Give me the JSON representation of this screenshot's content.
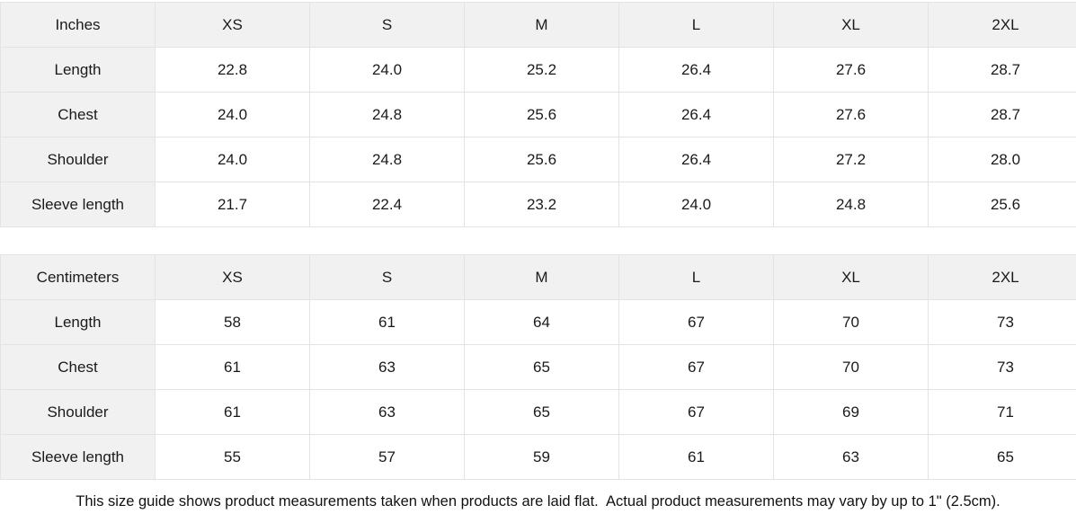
{
  "colors": {
    "header_bg": "#f1f1f1",
    "label_column_bg": "#f1f1f1",
    "border": "#e3e3e3",
    "text": "#1a1a1a",
    "page_bg": "#ffffff"
  },
  "tables": [
    {
      "unit_label": "Inches",
      "size_headers": [
        "XS",
        "S",
        "M",
        "L",
        "XL",
        "2XL"
      ],
      "rows": [
        {
          "label": "Length",
          "values": [
            "22.8",
            "24.0",
            "25.2",
            "26.4",
            "27.6",
            "28.7"
          ]
        },
        {
          "label": "Chest",
          "values": [
            "24.0",
            "24.8",
            "25.6",
            "26.4",
            "27.6",
            "28.7"
          ]
        },
        {
          "label": "Shoulder",
          "values": [
            "24.0",
            "24.8",
            "25.6",
            "26.4",
            "27.2",
            "28.0"
          ]
        },
        {
          "label": "Sleeve length",
          "values": [
            "21.7",
            "22.4",
            "23.2",
            "24.0",
            "24.8",
            "25.6"
          ]
        }
      ]
    },
    {
      "unit_label": "Centimeters",
      "size_headers": [
        "XS",
        "S",
        "M",
        "L",
        "XL",
        "2XL"
      ],
      "rows": [
        {
          "label": "Length",
          "values": [
            "58",
            "61",
            "64",
            "67",
            "70",
            "73"
          ]
        },
        {
          "label": "Chest",
          "values": [
            "61",
            "63",
            "65",
            "67",
            "70",
            "73"
          ]
        },
        {
          "label": "Shoulder",
          "values": [
            "61",
            "63",
            "65",
            "67",
            "69",
            "71"
          ]
        },
        {
          "label": "Sleeve length",
          "values": [
            "55",
            "57",
            "59",
            "61",
            "63",
            "65"
          ]
        }
      ]
    }
  ],
  "footer": {
    "note": "This size guide shows product measurements taken when products are laid flat.  Actual product measurements may vary by up to 1\" (2.5cm)."
  }
}
